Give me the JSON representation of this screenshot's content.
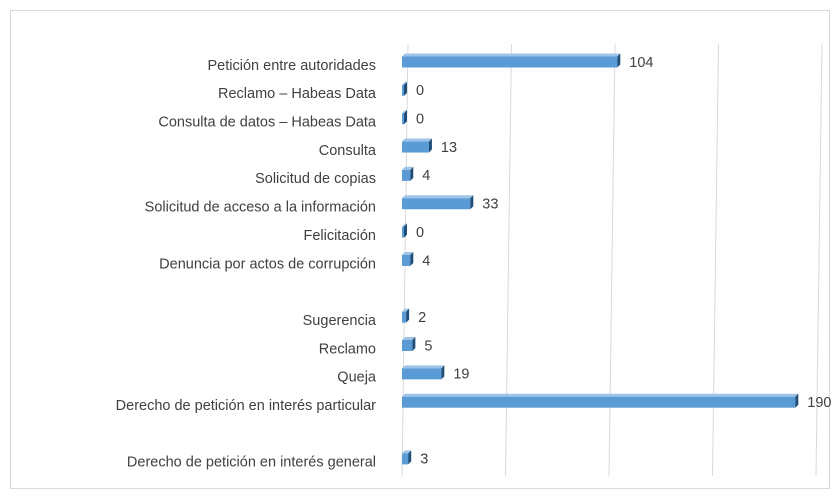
{
  "chart_data": {
    "type": "bar",
    "orientation": "horizontal",
    "categories": [
      "Petición entre autoridades",
      "Reclamo – Habeas Data",
      "Consulta de datos – Habeas Data",
      "Consulta",
      "Solicitud de copias",
      "Solicitud de acceso a la información",
      "Felicitación",
      "Denuncia por actos de corrupción",
      null,
      "Sugerencia",
      "Reclamo",
      "Queja",
      "Derecho de petición en interés particular",
      null,
      "Derecho de petición en interés general"
    ],
    "values": [
      104,
      0,
      0,
      13,
      4,
      33,
      0,
      4,
      null,
      2,
      5,
      19,
      190,
      null,
      3
    ],
    "color": "#5b9bd5",
    "xlim": [
      0,
      200
    ],
    "xticks": [
      0,
      50,
      100,
      150,
      200
    ],
    "grid": true
  }
}
